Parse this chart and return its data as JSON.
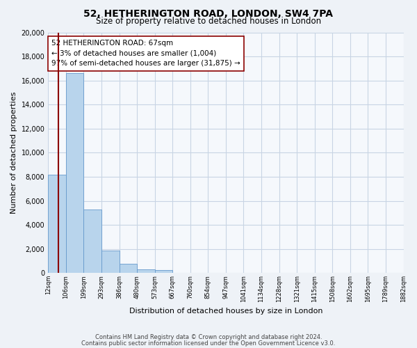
{
  "title": "52, HETHERINGTON ROAD, LONDON, SW4 7PA",
  "subtitle": "Size of property relative to detached houses in London",
  "xlabel": "Distribution of detached houses by size in London",
  "ylabel": "Number of detached properties",
  "bar_values": [
    8200,
    16600,
    5300,
    1850,
    750,
    280,
    220,
    0,
    0,
    0,
    0,
    0,
    0,
    0,
    0,
    0,
    0,
    0,
    0,
    0
  ],
  "bar_labels": [
    "12sqm",
    "106sqm",
    "199sqm",
    "293sqm",
    "386sqm",
    "480sqm",
    "573sqm",
    "667sqm",
    "760sqm",
    "854sqm",
    "947sqm",
    "1041sqm",
    "1134sqm",
    "1228sqm",
    "1321sqm",
    "1415sqm",
    "1508sqm",
    "1602sqm",
    "1695sqm",
    "1789sqm",
    "1882sqm"
  ],
  "annotation_line1": "52 HETHERINGTON ROAD: 67sqm",
  "annotation_line2": "← 3% of detached houses are smaller (1,004)",
  "annotation_line3": "97% of semi-detached houses are larger (31,875) →",
  "property_line_color": "#8b0000",
  "ylim": [
    0,
    20000
  ],
  "yticks": [
    0,
    2000,
    4000,
    6000,
    8000,
    10000,
    12000,
    14000,
    16000,
    18000,
    20000
  ],
  "footer_line1": "Contains HM Land Registry data © Crown copyright and database right 2024.",
  "footer_line2": "Contains public sector information licensed under the Open Government Licence v3.0.",
  "bg_color": "#eef2f7",
  "plot_bg_color": "#f5f8fc",
  "grid_color": "#c8d4e4",
  "bar_color": "#b8d4ec",
  "bar_edge_color": "#6699cc"
}
